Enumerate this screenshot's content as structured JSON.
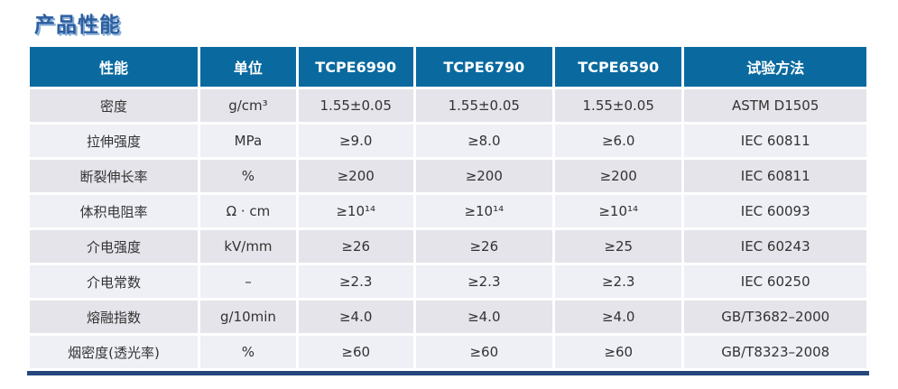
{
  "title": "产品性能",
  "colors": {
    "header_bg": "#0a6a9f",
    "header_text": "#ffffff",
    "row_odd_bg": "#e4e4ea",
    "row_even_bg": "#eef0f6",
    "body_text": "#333333",
    "bottom_border": "#26477e",
    "title_text": "#2e5f9e",
    "title_shadow": "#8aafd9"
  },
  "table": {
    "headers": [
      "性能",
      "单位",
      "TCPE6990",
      "TCPE6790",
      "TCPE6590",
      "试验方法"
    ],
    "rows": [
      [
        "密度",
        "g/cm³",
        "1.55±0.05",
        "1.55±0.05",
        "1.55±0.05",
        "ASTM D1505"
      ],
      [
        "拉伸强度",
        "MPa",
        "≥9.0",
        "≥8.0",
        "≥6.0",
        "IEC 60811"
      ],
      [
        "断裂伸长率",
        "%",
        "≥200",
        "≥200",
        "≥200",
        "IEC 60811"
      ],
      [
        "体积电阻率",
        "Ω · cm",
        "≥10¹⁴",
        "≥10¹⁴",
        "≥10¹⁴",
        "IEC 60093"
      ],
      [
        "介电强度",
        "kV/mm",
        "≥26",
        "≥26",
        "≥25",
        "IEC 60243"
      ],
      [
        "介电常数",
        "–",
        "≥2.3",
        "≥2.3",
        "≥2.3",
        "IEC 60250"
      ],
      [
        "熔融指数",
        "g/10min",
        "≥4.0",
        "≥4.0",
        "≥4.0",
        "GB/T3682–2000"
      ],
      [
        "烟密度(透光率)",
        "%",
        "≥60",
        "≥60",
        "≥60",
        "GB/T8323–2008"
      ]
    ]
  }
}
